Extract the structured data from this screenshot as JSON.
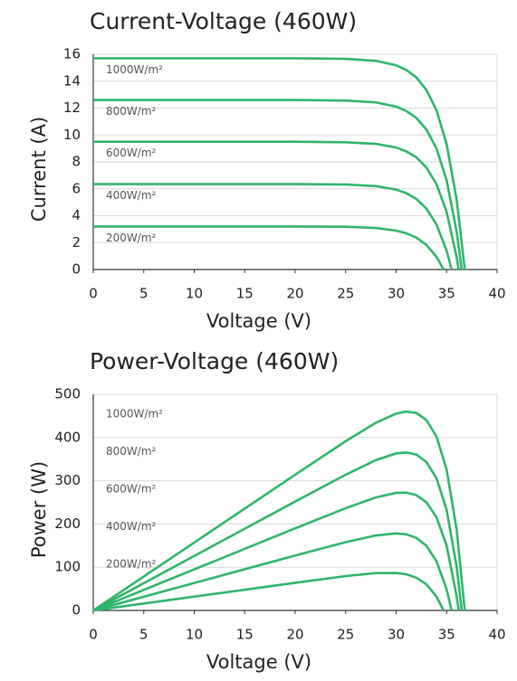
{
  "chart_data": [
    {
      "type": "line",
      "title": "Current-Voltage  (460W)",
      "x_label": "Voltage (V)",
      "y_label": "Current (A)",
      "xlim": [
        0,
        40
      ],
      "xticks": [
        0,
        5,
        10,
        15,
        20,
        25,
        30,
        35,
        40
      ],
      "ylim": [
        0,
        16
      ],
      "yticks": [
        0,
        2,
        4,
        6,
        8,
        10,
        12,
        14,
        16
      ],
      "grid": true,
      "series": [
        {
          "name": "1000W/m²",
          "color": "#2fb56a",
          "x": [
            0,
            10,
            20,
            25,
            28,
            30,
            31,
            32,
            33,
            34,
            35,
            36,
            36.8
          ],
          "values": [
            15.7,
            15.7,
            15.7,
            15.66,
            15.51,
            15.18,
            14.84,
            14.28,
            13.35,
            11.83,
            9.32,
            5.18,
            0
          ]
        },
        {
          "name": "800W/m²",
          "color": "#2fb56a",
          "x": [
            0,
            10,
            20,
            25,
            28,
            30,
            31,
            32,
            33,
            34,
            35,
            36,
            36.5
          ],
          "values": [
            12.6,
            12.6,
            12.6,
            12.56,
            12.42,
            12.11,
            11.79,
            11.27,
            10.41,
            8.99,
            6.65,
            2.79,
            0
          ]
        },
        {
          "name": "600W/m²",
          "color": "#2fb56a",
          "x": [
            0,
            10,
            20,
            25,
            28,
            30,
            31,
            32,
            33,
            34,
            35,
            36,
            36.2
          ],
          "values": [
            9.5,
            9.5,
            9.5,
            9.46,
            9.34,
            9.07,
            8.79,
            8.34,
            7.58,
            6.34,
            4.29,
            0.9,
            0
          ]
        },
        {
          "name": "400W/m²",
          "color": "#2fb56a",
          "x": [
            0,
            10,
            20,
            25,
            28,
            30,
            31,
            32,
            33,
            34,
            35,
            35.5
          ],
          "values": [
            6.35,
            6.35,
            6.35,
            6.32,
            6.2,
            5.94,
            5.68,
            5.25,
            4.53,
            3.35,
            1.4,
            0
          ]
        },
        {
          "name": "200W/m²",
          "color": "#2fb56a",
          "x": [
            0,
            10,
            20,
            25,
            28,
            30,
            31,
            32,
            33,
            34,
            34.7
          ],
          "values": [
            3.2,
            3.2,
            3.2,
            3.18,
            3.09,
            2.89,
            2.7,
            2.37,
            1.83,
            0.94,
            0
          ]
        }
      ]
    },
    {
      "type": "line",
      "title": "Power-Voltage  (460W)",
      "x_label": "Voltage (V)",
      "y_label": "Power (W)",
      "xlim": [
        0,
        40
      ],
      "xticks": [
        0,
        5,
        10,
        15,
        20,
        25,
        30,
        35,
        40
      ],
      "ylim": [
        0,
        500
      ],
      "yticks": [
        0,
        100,
        200,
        300,
        400,
        500
      ],
      "grid": true,
      "series": [
        {
          "name": "1000W/m²",
          "color": "#2fb56a",
          "x": [
            0,
            10,
            20,
            25,
            28,
            30,
            31,
            32,
            33,
            34,
            35,
            36,
            36.8
          ],
          "values": [
            0,
            157,
            314,
            391.5,
            434.3,
            455.4,
            460,
            457,
            440.6,
            402.2,
            326.2,
            186.5,
            0
          ]
        },
        {
          "name": "800W/m²",
          "color": "#2fb56a",
          "x": [
            0,
            10,
            20,
            25,
            28,
            30,
            31,
            32,
            33,
            34,
            35,
            36,
            36.5
          ],
          "values": [
            0,
            126,
            252,
            314,
            347.8,
            363.3,
            365.5,
            360.6,
            343.5,
            305.7,
            232.8,
            100.4,
            0
          ]
        },
        {
          "name": "600W/m²",
          "color": "#2fb56a",
          "x": [
            0,
            10,
            20,
            25,
            28,
            30,
            31,
            32,
            33,
            34,
            35,
            36,
            36.2
          ],
          "values": [
            0,
            95,
            190,
            236.5,
            261.5,
            272.1,
            272.5,
            266.9,
            250.1,
            215.6,
            150.2,
            32.4,
            0
          ]
        },
        {
          "name": "400W/m²",
          "color": "#2fb56a",
          "x": [
            0,
            10,
            20,
            25,
            28,
            30,
            31,
            32,
            33,
            34,
            35,
            35.5
          ],
          "values": [
            0,
            63.5,
            127,
            158,
            173.6,
            178.2,
            176.1,
            168,
            149.5,
            113.9,
            49,
            0
          ]
        },
        {
          "name": "200W/m²",
          "color": "#2fb56a",
          "x": [
            0,
            10,
            20,
            25,
            28,
            30,
            31,
            32,
            33,
            34,
            34.7
          ],
          "values": [
            0,
            32,
            64,
            79.5,
            86.5,
            86.7,
            83.7,
            75.8,
            60.4,
            32,
            0
          ]
        }
      ]
    }
  ]
}
